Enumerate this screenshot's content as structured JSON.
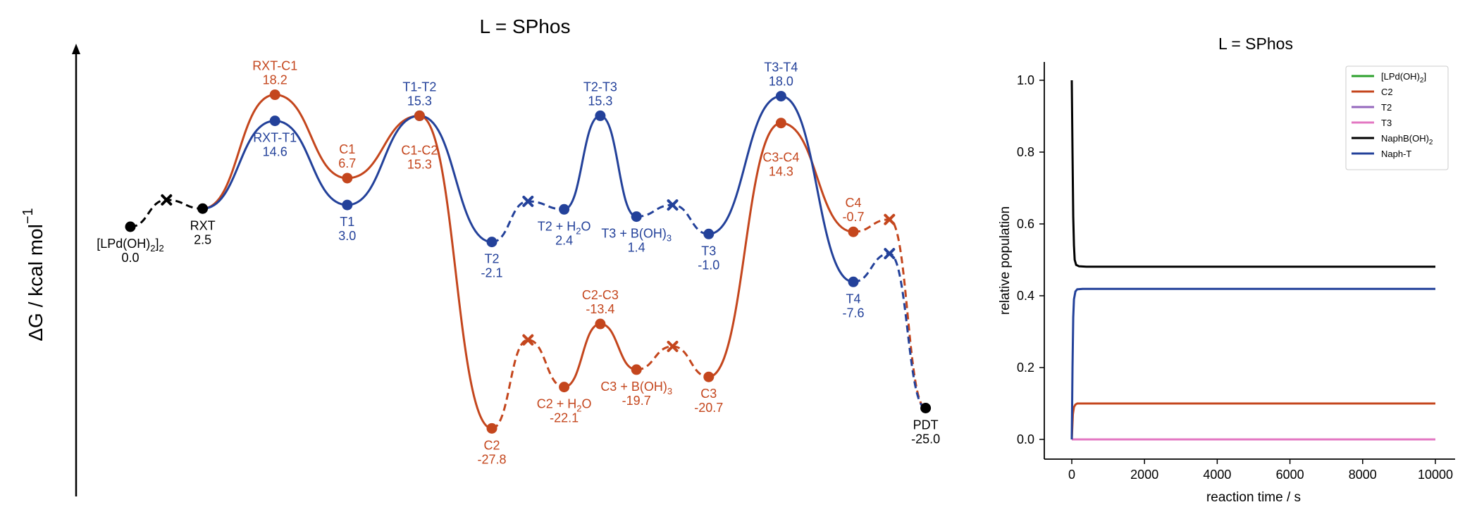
{
  "colors": {
    "orange": "#C4461D",
    "blue": "#23419A",
    "black": "#000000",
    "green": "#2CA02C",
    "purple": "#9467BD",
    "pink": "#E377C2"
  },
  "chart_data": [
    {
      "type": "line",
      "subtype": "energy-profile",
      "title": "L = SPhos",
      "ylabel": "ΔG / kcal mol",
      "ylabel_superscript": "−1",
      "grid": false,
      "legend": "none",
      "stationary_points": [
        {
          "id": "cat",
          "label": "[LPd(OH)2]2",
          "label_main": "[LPd(OH)",
          "label_sub": "2",
          "label_tail": "]",
          "label_sub2": "2",
          "value": "0.0",
          "y": 0.0,
          "x": 1,
          "color": "black",
          "marker": "circle"
        },
        {
          "id": "rxt",
          "label": "RXT",
          "value": "2.5",
          "y": 2.5,
          "x": 3,
          "color": "black",
          "marker": "circle"
        },
        {
          "id": "rxt-c1",
          "label": "RXT-C1",
          "value": "18.2",
          "y": 18.2,
          "x": 5,
          "color": "orange",
          "marker": "circle"
        },
        {
          "id": "rxt-t1",
          "label": "RXT-T1",
          "value": "14.6",
          "y": 14.6,
          "x": 5,
          "color": "blue",
          "marker": "circle"
        },
        {
          "id": "c1",
          "label": "C1",
          "value": "6.7",
          "y": 6.7,
          "x": 7,
          "color": "orange",
          "marker": "circle"
        },
        {
          "id": "t1",
          "label": "T1",
          "value": "3.0",
          "y": 3.0,
          "x": 7,
          "color": "blue",
          "marker": "circle"
        },
        {
          "id": "t1-t2",
          "label": "T1-T2",
          "value": "15.3",
          "y": 15.3,
          "x": 9,
          "color": "blue",
          "marker": "circle"
        },
        {
          "id": "c1-c2",
          "label": "C1-C2",
          "value": "15.3",
          "y": 15.3,
          "x": 9,
          "color": "orange",
          "marker": "circle"
        },
        {
          "id": "t2",
          "label": "T2",
          "value": "-2.1",
          "y": -2.1,
          "x": 11,
          "color": "blue",
          "marker": "circle"
        },
        {
          "id": "c2",
          "label": "C2",
          "value": "-27.8",
          "y": -27.8,
          "x": 11,
          "color": "orange",
          "marker": "circle"
        },
        {
          "id": "t2h2o",
          "label": "T2 + H2O",
          "label_main": "T2 + H",
          "label_sub": "2",
          "label_tail": "O",
          "value": "2.4",
          "y": 2.4,
          "x": 13,
          "color": "blue",
          "marker": "circle"
        },
        {
          "id": "c2h2o",
          "label": "C2 + H2O",
          "label_main": "C2 + H",
          "label_sub": "2",
          "label_tail": "O",
          "value": "-22.1",
          "y": -22.1,
          "x": 13,
          "color": "orange",
          "marker": "circle"
        },
        {
          "id": "t2-t3",
          "label": "T2-T3",
          "value": "15.3",
          "y": 15.3,
          "x": 14,
          "color": "blue",
          "marker": "circle"
        },
        {
          "id": "c2-c3",
          "label": "C2-C3",
          "value": "-13.4",
          "y": -13.4,
          "x": 14,
          "color": "orange",
          "marker": "circle"
        },
        {
          "id": "t3boh",
          "label": "T3 + B(OH)3",
          "label_main": "T3 + B(OH)",
          "label_sub": "3",
          "value": "1.4",
          "y": 1.4,
          "x": 15,
          "color": "blue",
          "marker": "circle"
        },
        {
          "id": "c3boh",
          "label": "C3 + B(OH)3",
          "label_main": "C3 + B(OH)",
          "label_sub": "3",
          "value": "-19.7",
          "y": -19.7,
          "x": 15,
          "color": "orange",
          "marker": "circle"
        },
        {
          "id": "t3",
          "label": "T3",
          "value": "-1.0",
          "y": -1.0,
          "x": 17,
          "color": "blue",
          "marker": "circle"
        },
        {
          "id": "c3",
          "label": "C3",
          "value": "-20.7",
          "y": -20.7,
          "x": 17,
          "color": "orange",
          "marker": "circle"
        },
        {
          "id": "t3-t4",
          "label": "T3-T4",
          "value": "18.0",
          "y": 18.0,
          "x": 19,
          "color": "blue",
          "marker": "circle"
        },
        {
          "id": "c3-c4",
          "label": "C3-C4",
          "value": "14.3",
          "y": 14.3,
          "x": 19,
          "color": "orange",
          "marker": "circle"
        },
        {
          "id": "c4",
          "label": "C4",
          "value": "-0.7",
          "y": -0.7,
          "x": 21,
          "color": "orange",
          "marker": "circle"
        },
        {
          "id": "t4",
          "label": "T4",
          "value": "-7.6",
          "y": -7.6,
          "x": 21,
          "color": "blue",
          "marker": "circle"
        },
        {
          "id": "pdt",
          "label": "PDT",
          "value": "-25.0",
          "y": -25.0,
          "x": 23,
          "color": "black",
          "marker": "circle"
        }
      ],
      "crossings": [
        {
          "x": 2,
          "y": 3.7,
          "color": "black"
        },
        {
          "x": 12,
          "y": 3.5,
          "color": "blue"
        },
        {
          "x": 16,
          "y": 3.0,
          "color": "blue"
        },
        {
          "x": 12,
          "y": -15.6,
          "color": "orange"
        },
        {
          "x": 16,
          "y": -16.5,
          "color": "orange"
        },
        {
          "x": 22,
          "y": 1.0,
          "color": "orange"
        },
        {
          "x": 22,
          "y": -3.7,
          "color": "blue"
        }
      ],
      "segments": [
        {
          "color": "black",
          "style": "dashed",
          "from": "cat",
          "to": "rxt",
          "via": 0
        },
        {
          "color": "orange",
          "style": "solid",
          "from": "rxt",
          "to": "rxt-c1"
        },
        {
          "color": "orange",
          "style": "solid",
          "from": "rxt-c1",
          "to": "c1"
        },
        {
          "color": "orange",
          "style": "solid",
          "from": "c1",
          "to": "c1-c2"
        },
        {
          "color": "orange",
          "style": "solid",
          "from": "c1-c2",
          "to": "c2"
        },
        {
          "color": "orange",
          "style": "dashed",
          "from": "c2",
          "to": "c2h2o",
          "via": 3
        },
        {
          "color": "orange",
          "style": "solid",
          "from": "c2h2o",
          "to": "c2-c3"
        },
        {
          "color": "orange",
          "style": "solid",
          "from": "c2-c3",
          "to": "c3boh"
        },
        {
          "color": "orange",
          "style": "dashed",
          "from": "c3boh",
          "to": "c3",
          "via": 4
        },
        {
          "color": "orange",
          "style": "solid",
          "from": "c3",
          "to": "c3-c4"
        },
        {
          "color": "orange",
          "style": "solid",
          "from": "c3-c4",
          "to": "c4"
        },
        {
          "color": "orange",
          "style": "dashed",
          "from": "c4",
          "to": "pdt",
          "via": 5
        },
        {
          "color": "blue",
          "style": "solid",
          "from": "rxt",
          "to": "rxt-t1"
        },
        {
          "color": "blue",
          "style": "solid",
          "from": "rxt-t1",
          "to": "t1"
        },
        {
          "color": "blue",
          "style": "solid",
          "from": "t1",
          "to": "t1-t2"
        },
        {
          "color": "blue",
          "style": "solid",
          "from": "t1-t2",
          "to": "t2"
        },
        {
          "color": "blue",
          "style": "dashed",
          "from": "t2",
          "to": "t2h2o",
          "via": 1
        },
        {
          "color": "blue",
          "style": "solid",
          "from": "t2h2o",
          "to": "t2-t3"
        },
        {
          "color": "blue",
          "style": "solid",
          "from": "t2-t3",
          "to": "t3boh"
        },
        {
          "color": "blue",
          "style": "dashed",
          "from": "t3boh",
          "to": "t3",
          "via": 2
        },
        {
          "color": "blue",
          "style": "solid",
          "from": "t3",
          "to": "t3-t4"
        },
        {
          "color": "blue",
          "style": "solid",
          "from": "t3-t4",
          "to": "t4"
        },
        {
          "color": "blue",
          "style": "dashed",
          "from": "t4",
          "to": "pdt",
          "via": 6
        }
      ]
    },
    {
      "type": "line",
      "title": "L = SPhos",
      "xlabel": "reaction time / s",
      "ylabel": "relative population",
      "xlim": [
        -300,
        10300
      ],
      "ylim": [
        -0.05,
        1.05
      ],
      "xticks": [
        0,
        2000,
        4000,
        6000,
        8000,
        10000
      ],
      "yticks": [
        0.0,
        0.2,
        0.4,
        0.6,
        0.8,
        1.0
      ],
      "ytick_labels": [
        "0.0",
        "0.2",
        "0.4",
        "0.6",
        "0.8",
        "1.0"
      ],
      "xtick_labels": [
        "0",
        "2000",
        "4000",
        "6000",
        "8000",
        "10000"
      ],
      "grid": false,
      "legend_position": "top-right",
      "series": [
        {
          "name": "[LPd(OH)2]",
          "label_main": "[LPd(OH)",
          "label_sub": "2",
          "label_tail": "]",
          "color": "green",
          "x": [
            0,
            10000
          ],
          "y": [
            0.0,
            0.0
          ]
        },
        {
          "name": "C2",
          "label_main": "C2",
          "color": "orange",
          "x": [
            0,
            30,
            60,
            100,
            150,
            300,
            10000
          ],
          "y": [
            0.0,
            0.07,
            0.09,
            0.097,
            0.1,
            0.1,
            0.1
          ]
        },
        {
          "name": "T2",
          "label_main": "T2",
          "color": "purple",
          "x": [
            0,
            10000
          ],
          "y": [
            0.0,
            0.0
          ]
        },
        {
          "name": "T3",
          "label_main": "T3",
          "color": "pink",
          "x": [
            0,
            10000
          ],
          "y": [
            0.0,
            0.0
          ]
        },
        {
          "name": "NaphB(OH)2",
          "label_main": "NaphB(OH)",
          "label_sub": "2",
          "color": "black",
          "x": [
            0,
            20,
            40,
            60,
            80,
            120,
            200,
            400,
            10000
          ],
          "y": [
            1.0,
            0.8,
            0.62,
            0.54,
            0.5,
            0.486,
            0.482,
            0.481,
            0.481
          ]
        },
        {
          "name": "Naph-T",
          "label_main": "Naph-T",
          "color": "blue",
          "x": [
            0,
            20,
            40,
            60,
            100,
            150,
            300,
            10000
          ],
          "y": [
            0.0,
            0.2,
            0.34,
            0.39,
            0.412,
            0.418,
            0.419,
            0.419
          ]
        }
      ]
    }
  ]
}
